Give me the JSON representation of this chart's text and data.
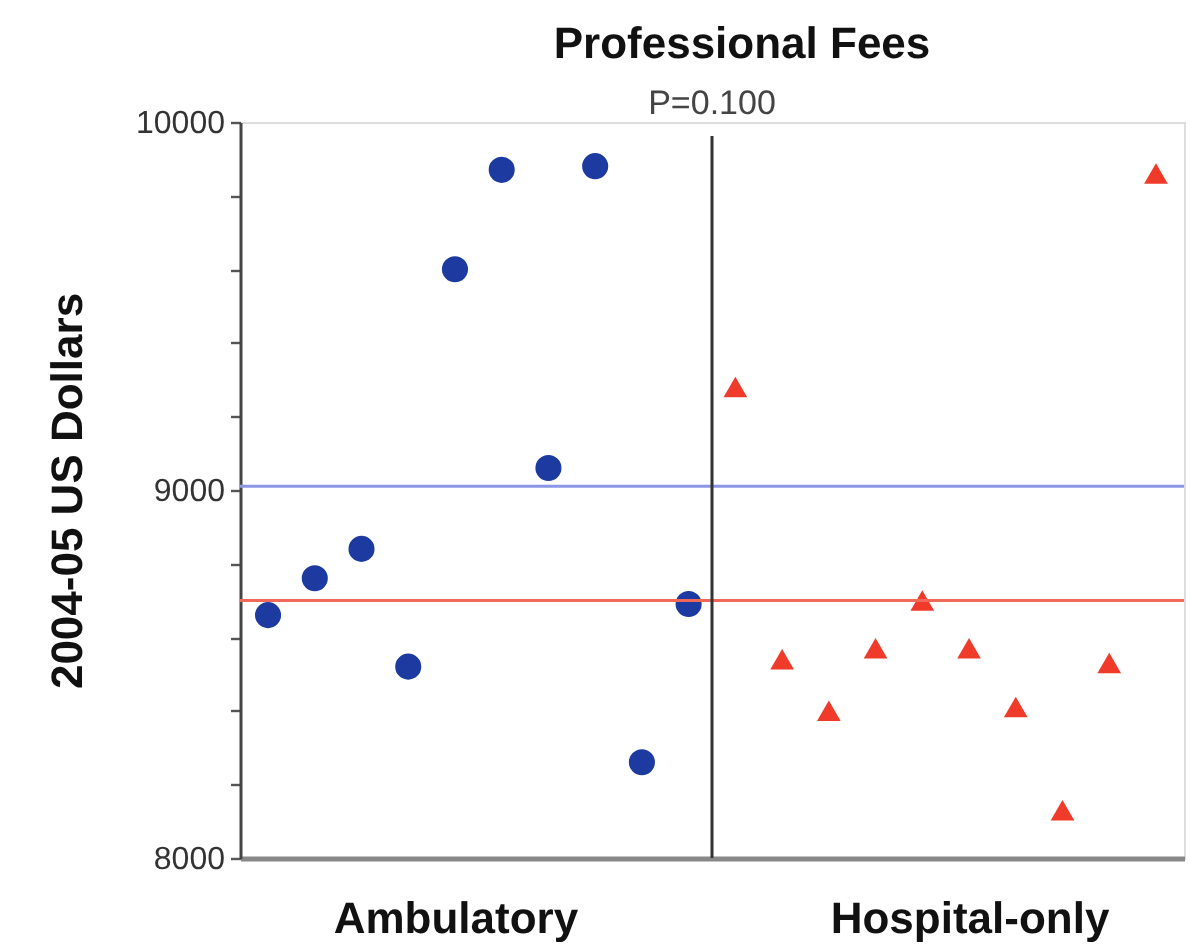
{
  "chart_data": {
    "type": "scatter",
    "title": "Professional Fees",
    "ylabel": "2004-05 US Dollars",
    "categories": [
      null,
      null,
      null,
      null,
      "Ambulatory",
      null,
      null,
      null,
      null,
      null,
      null,
      null,
      null,
      null,
      null,
      "Hospital-only",
      null,
      null,
      null,
      null
    ],
    "ylim": [
      8000,
      10000
    ],
    "yticks": [
      8000,
      {
        "value": 8200,
        "label": null
      },
      {
        "value": 8400,
        "label": null
      },
      {
        "value": 8600,
        "label": null
      },
      {
        "value": 8800,
        "label": null
      },
      9000,
      {
        "value": 9200,
        "label": null
      },
      {
        "value": 9400,
        "label": null
      },
      {
        "value": 9600,
        "label": null
      },
      {
        "value": 9800,
        "label": null
      },
      10000
    ],
    "series": [
      {
        "color": "#1c3aa0",
        "marker": "circle",
        "values": [
          8660,
          8760,
          8840,
          8520,
          9600,
          9870,
          9060,
          9880,
          8260,
          8690,
          null,
          null,
          null,
          null,
          null,
          null,
          null,
          null,
          null,
          null
        ]
      },
      {
        "color": "#f03a2a",
        "marker": "triangle",
        "values": [
          null,
          null,
          null,
          null,
          null,
          null,
          null,
          null,
          null,
          null,
          9280,
          8540,
          8400,
          8570,
          8700,
          8570,
          8410,
          8130,
          8530,
          9860
        ]
      }
    ],
    "ref_lines": [
      {
        "axis": "y",
        "value": 9010,
        "color": "#8c96e6"
      },
      {
        "axis": "y",
        "value": 8700,
        "color": "#f0685a"
      }
    ],
    "annotations": [
      "P=0.100"
    ]
  }
}
